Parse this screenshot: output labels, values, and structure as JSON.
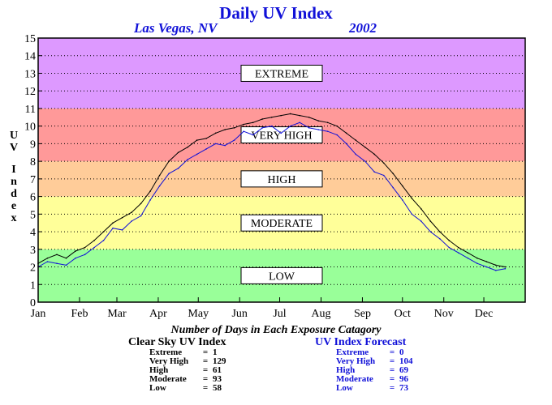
{
  "chart_data": {
    "type": "line",
    "title": "Daily UV Index",
    "location": "Las Vegas, NV",
    "year": "2002",
    "ylabel": "UV Index",
    "ylabel_letters": [
      "U",
      "V",
      "I",
      "n",
      "d",
      "e",
      "x"
    ],
    "ylim": [
      0,
      15
    ],
    "yticks": [
      "0",
      "1",
      "2",
      "3",
      "4",
      "5",
      "6",
      "7",
      "8",
      "9",
      "10",
      "11",
      "12",
      "13",
      "14",
      "15"
    ],
    "x_months": [
      "Jan",
      "Feb",
      "Mar",
      "Apr",
      "May",
      "Jun",
      "Jul",
      "Aug",
      "Sep",
      "Oct",
      "Nov",
      "Dec"
    ],
    "xlim_days": [
      1,
      366
    ],
    "grid": true,
    "bands": [
      {
        "label": "LOW",
        "from": 0,
        "to": 3,
        "color": "#99ff99"
      },
      {
        "label": "MODERATE",
        "from": 3,
        "to": 6,
        "color": "#ffff99"
      },
      {
        "label": "HIGH",
        "from": 6,
        "to": 8,
        "color": "#ffcc99"
      },
      {
        "label": "VERY HIGH",
        "from": 8,
        "to": 11,
        "color": "#ff9999"
      },
      {
        "label": "EXTREME",
        "from": 11,
        "to": 15,
        "color": "#dd99ff"
      }
    ],
    "series": [
      {
        "name": "Clear Sky UV Index",
        "color": "#000000",
        "x": [
          1,
          8,
          15,
          22,
          29,
          36,
          43,
          50,
          57,
          64,
          71,
          78,
          85,
          92,
          99,
          106,
          113,
          120,
          127,
          134,
          141,
          148,
          155,
          162,
          169,
          176,
          183,
          190,
          197,
          204,
          211,
          218,
          225,
          232,
          239,
          246,
          253,
          260,
          267,
          274,
          281,
          288,
          295,
          302,
          309,
          316,
          323,
          330,
          337,
          344,
          351
        ],
        "y": [
          2.2,
          2.5,
          2.7,
          2.5,
          2.9,
          3.1,
          3.5,
          4.0,
          4.5,
          4.8,
          5.1,
          5.6,
          6.3,
          7.2,
          8.0,
          8.5,
          8.8,
          9.2,
          9.3,
          9.6,
          9.8,
          9.9,
          10.1,
          10.2,
          10.4,
          10.5,
          10.6,
          10.7,
          10.6,
          10.5,
          10.3,
          10.2,
          10.0,
          9.6,
          9.2,
          8.8,
          8.4,
          7.9,
          7.3,
          6.6,
          5.9,
          5.3,
          4.6,
          4.0,
          3.5,
          3.1,
          2.8,
          2.5,
          2.3,
          2.1,
          2.0
        ]
      },
      {
        "name": "UV Index Forecast",
        "color": "#1010d8",
        "x": [
          1,
          8,
          15,
          22,
          29,
          36,
          43,
          50,
          57,
          64,
          71,
          78,
          85,
          92,
          99,
          106,
          113,
          120,
          127,
          134,
          141,
          148,
          155,
          162,
          169,
          176,
          183,
          190,
          197,
          204,
          211,
          218,
          225,
          232,
          239,
          246,
          253,
          260,
          267,
          274,
          281,
          288,
          295,
          302,
          309,
          316,
          323,
          330,
          337,
          344,
          351
        ],
        "y": [
          2.0,
          2.3,
          2.2,
          2.1,
          2.5,
          2.7,
          3.1,
          3.5,
          4.2,
          4.1,
          4.6,
          4.9,
          5.8,
          6.6,
          7.3,
          7.6,
          8.1,
          8.4,
          8.7,
          9.0,
          8.9,
          9.2,
          9.7,
          9.5,
          9.9,
          10.0,
          9.6,
          10.0,
          10.2,
          9.9,
          9.8,
          9.7,
          9.5,
          9.0,
          8.4,
          8.0,
          7.4,
          7.2,
          6.5,
          5.8,
          5.0,
          4.6,
          4.0,
          3.6,
          3.1,
          2.8,
          2.5,
          2.2,
          2.0,
          1.8,
          1.9
        ]
      }
    ],
    "legend": "bottom"
  },
  "counts": {
    "title": "Number of Days in Each Exposure Catagory",
    "clear_sky": {
      "title": "Clear Sky UV Index",
      "rows": [
        {
          "name": "Extreme",
          "value": "1"
        },
        {
          "name": "Very High",
          "value": "129"
        },
        {
          "name": "High",
          "value": "61"
        },
        {
          "name": "Moderate",
          "value": "93"
        },
        {
          "name": "Low",
          "value": "58"
        }
      ]
    },
    "forecast": {
      "title": "UV Index Forecast",
      "rows": [
        {
          "name": "Extreme",
          "value": "0"
        },
        {
          "name": "Very High",
          "value": "104"
        },
        {
          "name": "High",
          "value": "69"
        },
        {
          "name": "Moderate",
          "value": "96"
        },
        {
          "name": "Low",
          "value": "73"
        }
      ]
    }
  }
}
